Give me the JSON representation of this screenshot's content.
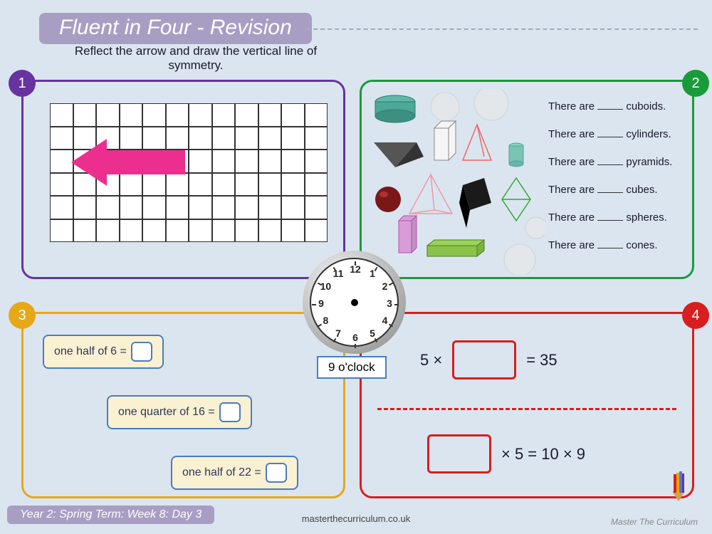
{
  "title": "Fluent in Four - Revision",
  "instruction": "Reflect the arrow and draw the vertical line of symmetry.",
  "badges": {
    "b1": "1",
    "b2": "2",
    "b3": "3",
    "b4": "4"
  },
  "box1": {
    "grid_cols": 12,
    "grid_rows": 6,
    "arrow_color": "#ec2f8f"
  },
  "box2": {
    "lines": [
      "There are ____ cuboids.",
      "There are ____ cylinders.",
      "There are ____ pyramids.",
      "There are ____ cubes.",
      "There are ____ spheres.",
      "There are ____ cones."
    ],
    "l0a": "There are ",
    "l0b": " cuboids.",
    "l1a": "There are ",
    "l1b": " cylinders.",
    "l2a": "There are ",
    "l2b": " pyramids.",
    "l3a": "There are ",
    "l3b": " cubes.",
    "l4a": "There are ",
    "l4b": " spheres.",
    "l5a": "There are ",
    "l5b": " cones."
  },
  "box3": {
    "q1": "one half of 6 =",
    "q2": "one quarter of 16 =",
    "q3": "one half of 22 ="
  },
  "box4": {
    "eq1_left": "5 ×",
    "eq1_right": "= 35",
    "eq2_right": "× 5 = 10 × 9"
  },
  "clock": {
    "label": "9 o'clock",
    "numbers": [
      "12",
      "1",
      "2",
      "3",
      "4",
      "5",
      "6",
      "7",
      "8",
      "9",
      "10",
      "11"
    ]
  },
  "footer": {
    "pill": "Year 2: Spring Term: Week 8: Day 3",
    "url": "masterthecurriculum.co.uk",
    "logo": "Master The Curriculum"
  },
  "colors": {
    "bg": "#dbe5ef",
    "purple": "#6633a0",
    "green": "#1a9b3a",
    "yellow": "#e6a817",
    "red": "#d81e1e",
    "lilac": "#a89ec4",
    "blue_border": "#4a7dbf",
    "pill_bg": "#faf0d2"
  }
}
